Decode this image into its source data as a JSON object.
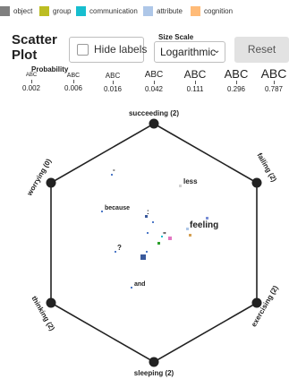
{
  "legend": [
    {
      "label": "object",
      "color": "#7f7f7f"
    },
    {
      "label": "group",
      "color": "#bcbd22"
    },
    {
      "label": "communication",
      "color": "#17becf"
    },
    {
      "label": "attribute",
      "color": "#aec7e8"
    },
    {
      "label": "cognition",
      "color": "#ffbb78"
    }
  ],
  "header": {
    "title_line1": "Scatter",
    "title_line2": "Plot",
    "hide_labels": "Hide labels",
    "size_scale_label": "Size Scale",
    "size_scale_value": "Logarithmic",
    "reset": "Reset"
  },
  "probability": {
    "title": "Probability",
    "sample": "ABC",
    "ticks": [
      "0.002",
      "0.006",
      "0.016",
      "0.042",
      "0.111",
      "0.296",
      "0.787"
    ]
  },
  "axes": {
    "top": "succeeding (2)",
    "upper_right": "failing (2)",
    "lower_right": "exercising (2)",
    "bottom": "sleeping (2)",
    "lower_left": "thinking (2)",
    "upper_left": "worrying (0)"
  },
  "words": {
    "less": "less",
    "because": "because",
    "feeling": "feeling",
    "and": "and",
    "question": "?",
    "colon": ":",
    "quote": "\"",
    "dash": "-"
  }
}
